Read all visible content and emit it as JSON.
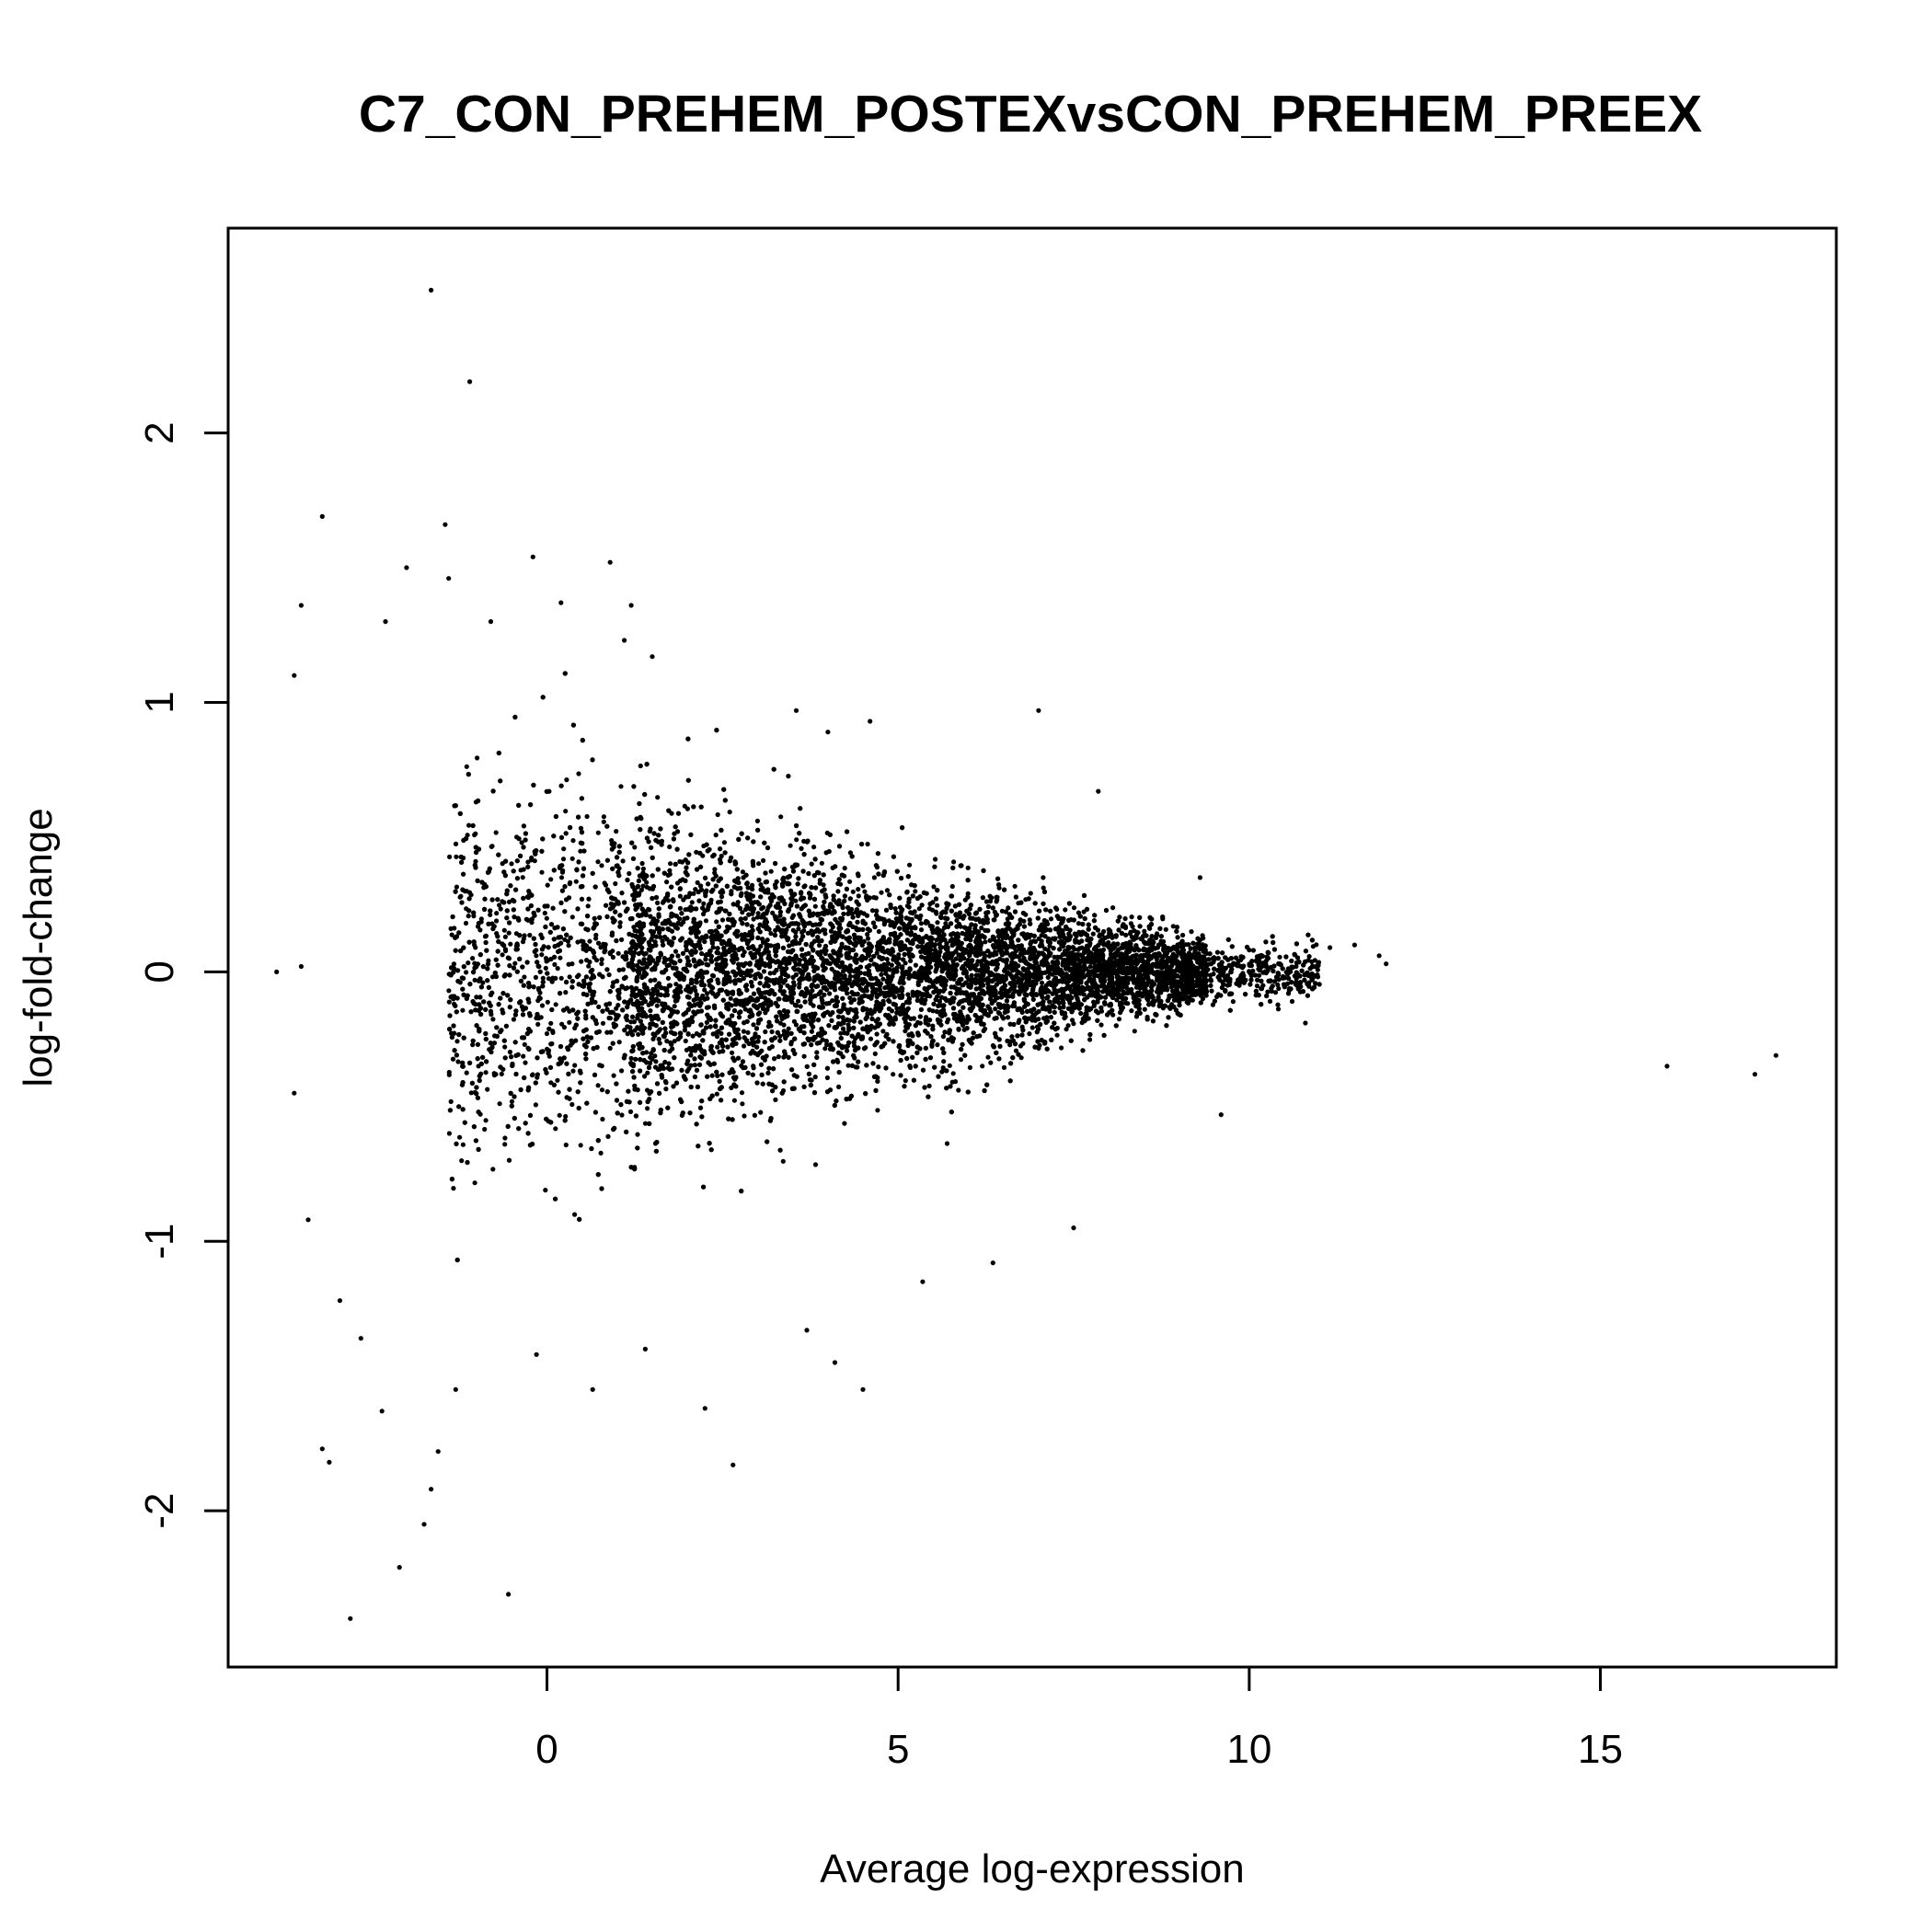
{
  "chart_data": {
    "type": "scatter",
    "title": "C7_CON_PREHEM_POSTEXvsCON_PREHEM_PREEX",
    "xlabel": "Average log-expression",
    "ylabel": "log-fold-change",
    "xlim": [
      -4.54,
      18.36
    ],
    "ylim": [
      -2.58,
      2.76
    ],
    "x_ticks": [
      0,
      5,
      10,
      15
    ],
    "y_ticks": [
      -2,
      -1,
      0,
      1,
      2
    ],
    "x_tick_labels": [
      "0",
      "5",
      "10",
      "15"
    ],
    "y_tick_labels": [
      "-2",
      "-1",
      "0",
      "1",
      "2"
    ],
    "grid": false,
    "point_color": "#000000",
    "outlier_points": [
      {
        "x": -1.65,
        "y": 2.53
      },
      {
        "x": -1.1,
        "y": 2.19
      },
      {
        "x": -3.2,
        "y": 1.69
      },
      {
        "x": -1.45,
        "y": 1.66
      },
      {
        "x": -0.2,
        "y": 1.54
      },
      {
        "x": 0.9,
        "y": 1.52
      },
      {
        "x": -2.0,
        "y": 1.5
      },
      {
        "x": -1.4,
        "y": 1.46
      },
      {
        "x": -3.5,
        "y": 1.36
      },
      {
        "x": 0.2,
        "y": 1.37
      },
      {
        "x": 1.2,
        "y": 1.36
      },
      {
        "x": -2.3,
        "y": 1.3
      },
      {
        "x": -0.8,
        "y": 1.3
      },
      {
        "x": -3.6,
        "y": 1.1
      },
      {
        "x": 1.5,
        "y": 1.17
      },
      {
        "x": 3.55,
        "y": 0.97
      },
      {
        "x": 7.0,
        "y": 0.97
      },
      {
        "x": 4.6,
        "y": 0.93
      },
      {
        "x": 4.0,
        "y": 0.89
      },
      {
        "x": 7.85,
        "y": 0.67
      },
      {
        "x": 9.3,
        "y": 0.35
      },
      {
        "x": 11.15,
        "y": 0.09
      },
      {
        "x": 11.5,
        "y": 0.1
      },
      {
        "x": 11.85,
        "y": 0.06
      },
      {
        "x": 11.95,
        "y": 0.03
      },
      {
        "x": 10.8,
        "y": -0.19
      },
      {
        "x": 15.95,
        "y": -0.35
      },
      {
        "x": 17.2,
        "y": -0.38
      },
      {
        "x": 17.5,
        "y": -0.31
      },
      {
        "x": -3.6,
        "y": -0.45
      },
      {
        "x": -3.4,
        "y": -0.92
      },
      {
        "x": 9.6,
        "y": -0.53
      },
      {
        "x": 7.5,
        "y": -0.95
      },
      {
        "x": -2.95,
        "y": -1.22
      },
      {
        "x": -2.65,
        "y": -1.36
      },
      {
        "x": 2.25,
        "y": -1.62
      },
      {
        "x": 2.65,
        "y": -1.83
      },
      {
        "x": 4.5,
        "y": -1.55
      },
      {
        "x": 4.1,
        "y": -1.45
      },
      {
        "x": 3.7,
        "y": -1.33
      },
      {
        "x": 5.35,
        "y": -1.15
      },
      {
        "x": 6.35,
        "y": -1.08
      },
      {
        "x": 1.4,
        "y": -1.4
      },
      {
        "x": 0.65,
        "y": -1.55
      },
      {
        "x": -3.2,
        "y": -1.77
      },
      {
        "x": -3.1,
        "y": -1.82
      },
      {
        "x": -1.55,
        "y": -1.78
      },
      {
        "x": -1.65,
        "y": -1.92
      },
      {
        "x": -1.75,
        "y": -2.05
      },
      {
        "x": -2.1,
        "y": -2.21
      },
      {
        "x": -0.55,
        "y": -2.31
      },
      {
        "x": -2.8,
        "y": -2.4
      },
      {
        "x": -2.35,
        "y": -1.63
      },
      {
        "x": -1.3,
        "y": -1.55
      },
      {
        "x": -0.15,
        "y": -1.42
      },
      {
        "x": -3.85,
        "y": 0.0
      },
      {
        "x": -3.5,
        "y": 0.02
      }
    ],
    "dense_cloud_description_note": ""
  }
}
